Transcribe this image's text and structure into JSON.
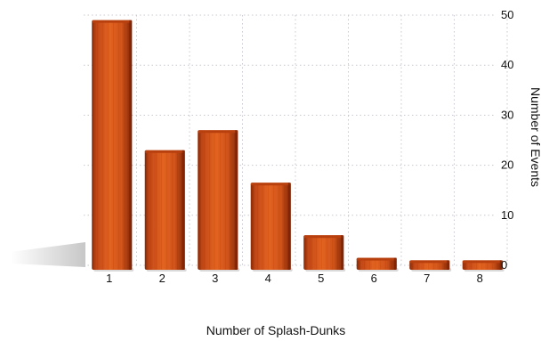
{
  "chart_data": {
    "type": "bar",
    "categories": [
      "1",
      "2",
      "3",
      "4",
      "5",
      "6",
      "7",
      "8"
    ],
    "values": [
      49,
      23,
      27,
      16.5,
      6,
      1.5,
      1,
      1
    ],
    "title": "",
    "xlabel": "Number of Splash-Dunks",
    "ylabel": "Number of Events",
    "ylim": [
      0,
      50
    ],
    "yticks": [
      "0",
      "10",
      "20",
      "30",
      "40",
      "50"
    ],
    "y_axis_side": "right",
    "grid": true,
    "legend": "none",
    "colors": {
      "bar_light": "#e2621f",
      "bar_mid": "#c24716",
      "bar_dark": "#7f2405",
      "bar_top": "#b8400f",
      "grid": "#c8c8d2"
    }
  }
}
